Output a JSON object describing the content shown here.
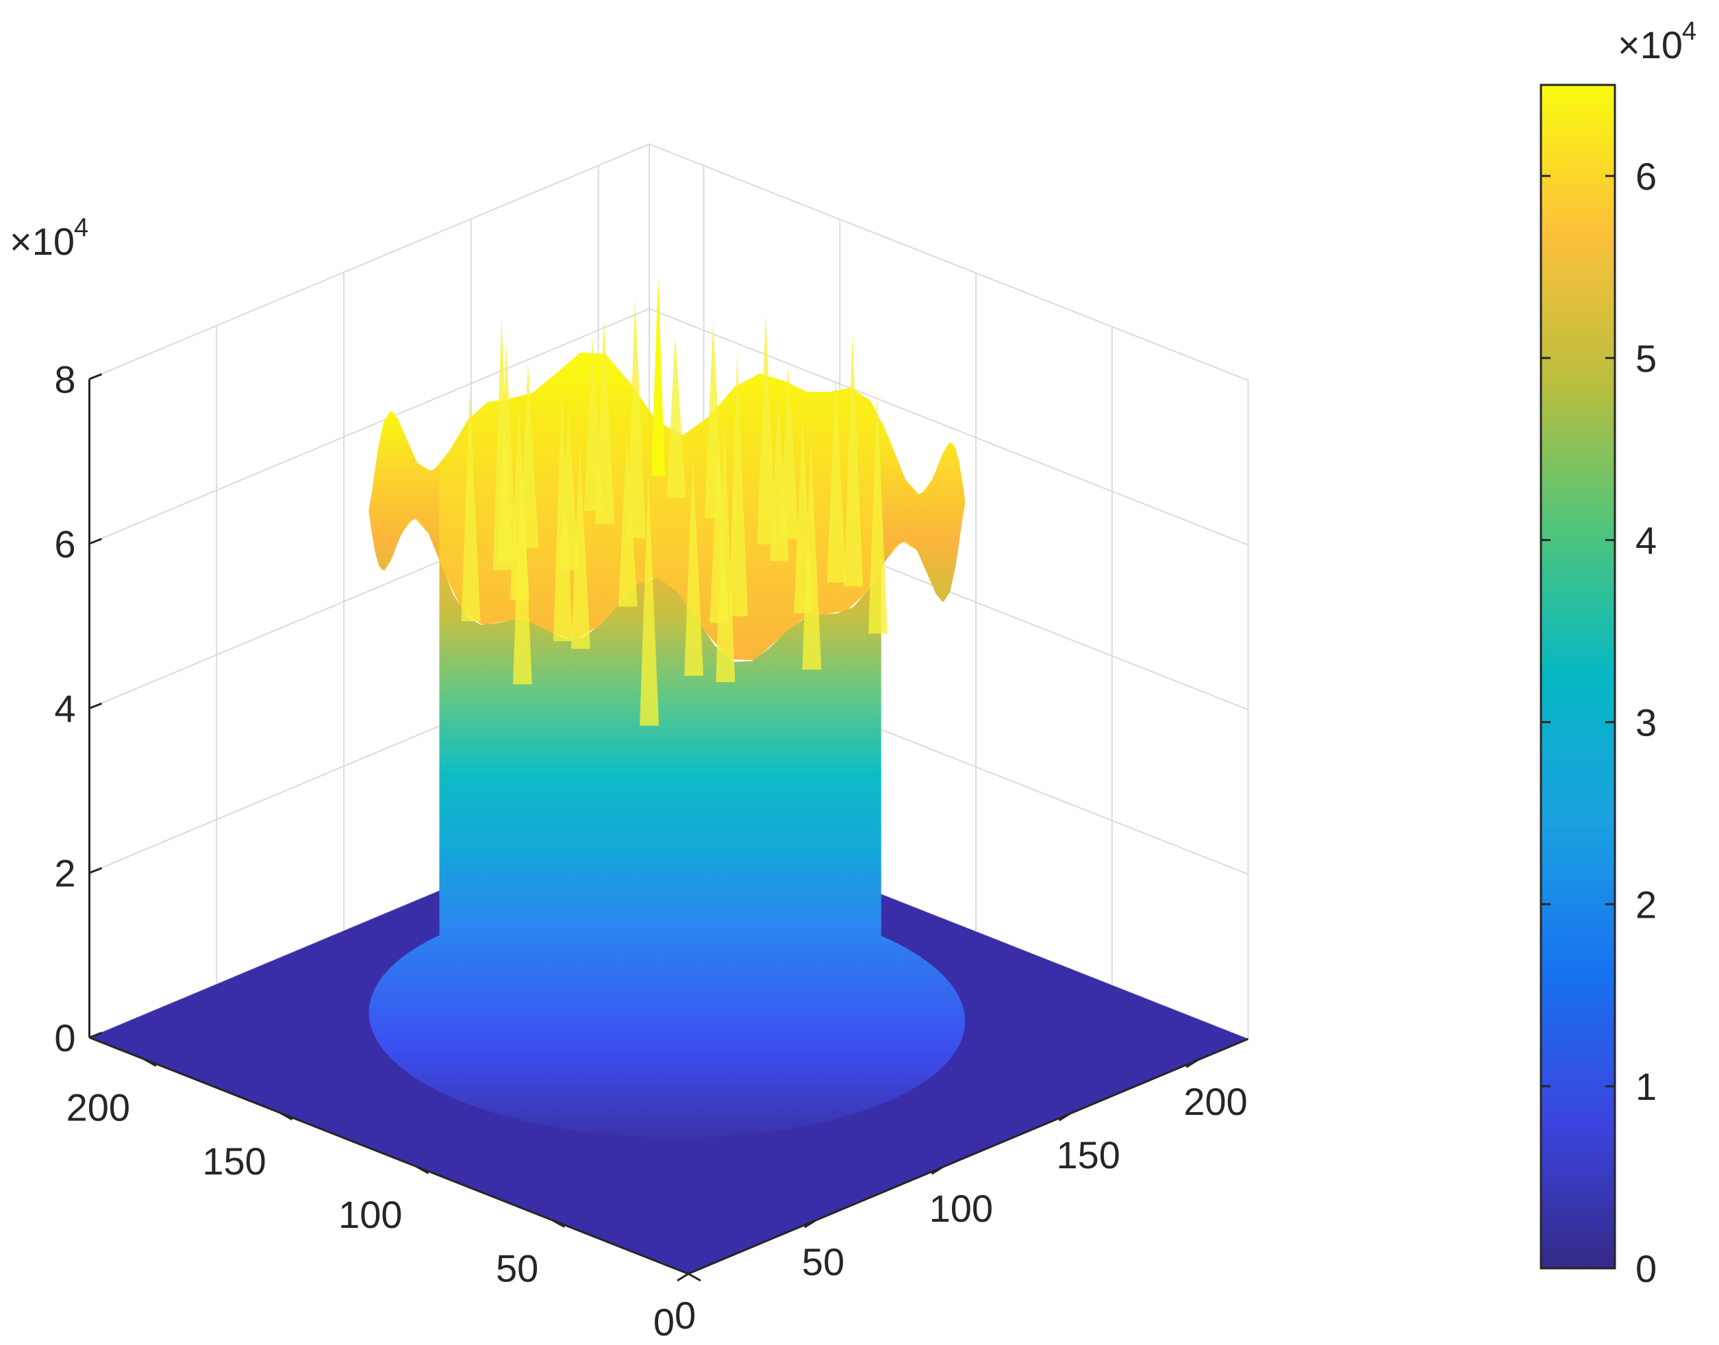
{
  "chart_data": {
    "type": "surface3d",
    "title": "",
    "xlabel": "",
    "ylabel": "",
    "zlabel": "",
    "xlim": [
      0,
      220
    ],
    "ylim": [
      0,
      220
    ],
    "zlim": [
      0,
      80000
    ],
    "x_ticks": [
      "0",
      "50",
      "100",
      "150",
      "200"
    ],
    "y_ticks": [
      "0",
      "50",
      "100",
      "150",
      "200"
    ],
    "z_ticks": [
      "0",
      "2",
      "4",
      "6",
      "8"
    ],
    "z_multiplier": {
      "base": "×10",
      "exp": "4"
    },
    "grid": true,
    "colormap": "parula",
    "colorbar": {
      "placement": "right",
      "range": [
        0,
        65000
      ],
      "ticks": [
        "0",
        "1",
        "2",
        "3",
        "4",
        "5",
        "6"
      ],
      "multiplier": {
        "base": "×10",
        "exp": "4"
      }
    },
    "surface_description_values": {
      "baseline": 0,
      "plateau_x_range": [
        40,
        200
      ],
      "plateau_y_range": [
        40,
        200
      ],
      "plateau_level_typical": 62000,
      "peak_level": 77000
    },
    "colors": {
      "parula": [
        "#352a87",
        "#0f5cdd",
        "#1481d6",
        "#06a4ca",
        "#2eb7a4",
        "#87bf77",
        "#d1bb59",
        "#fec832",
        "#f9fb0e"
      ]
    }
  }
}
